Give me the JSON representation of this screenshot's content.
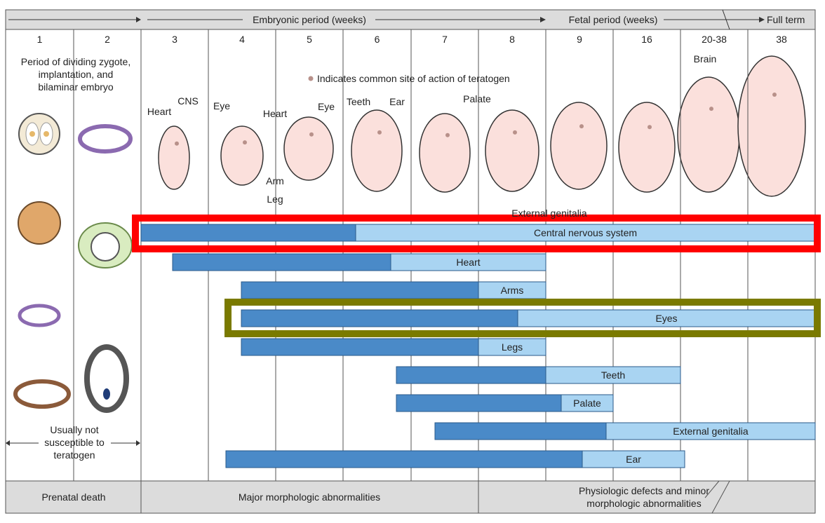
{
  "header": {
    "embryonic": "Embryonic period (weeks)",
    "fetal": "Fetal period (weeks)",
    "full_term": "Full term"
  },
  "weeks": [
    "1",
    "2",
    "3",
    "4",
    "5",
    "6",
    "7",
    "8",
    "9",
    "16",
    "20-38",
    "38"
  ],
  "left_notes": {
    "top": "Period of dividing zygote, implantation, and bilaminar embryo",
    "bottom": "Usually not susceptible to teratogen"
  },
  "legend": "Indicates common site of action of teratogen",
  "illustration_labels": [
    "Heart",
    "CNS",
    "Eye",
    "Heart",
    "Eye",
    "Arm",
    "Leg",
    "Teeth",
    "Ear",
    "Palate",
    "Brain",
    "External genitalia"
  ],
  "bars": [
    "Central nervous system",
    "Heart",
    "Arms",
    "Eyes",
    "Legs",
    "Teeth",
    "Palate",
    "External genitalia",
    "Ear"
  ],
  "footer": [
    "Prenatal death",
    "Major morphologic abnormalities",
    "Physiologic defects and minor morphologic abnormalities"
  ]
}
